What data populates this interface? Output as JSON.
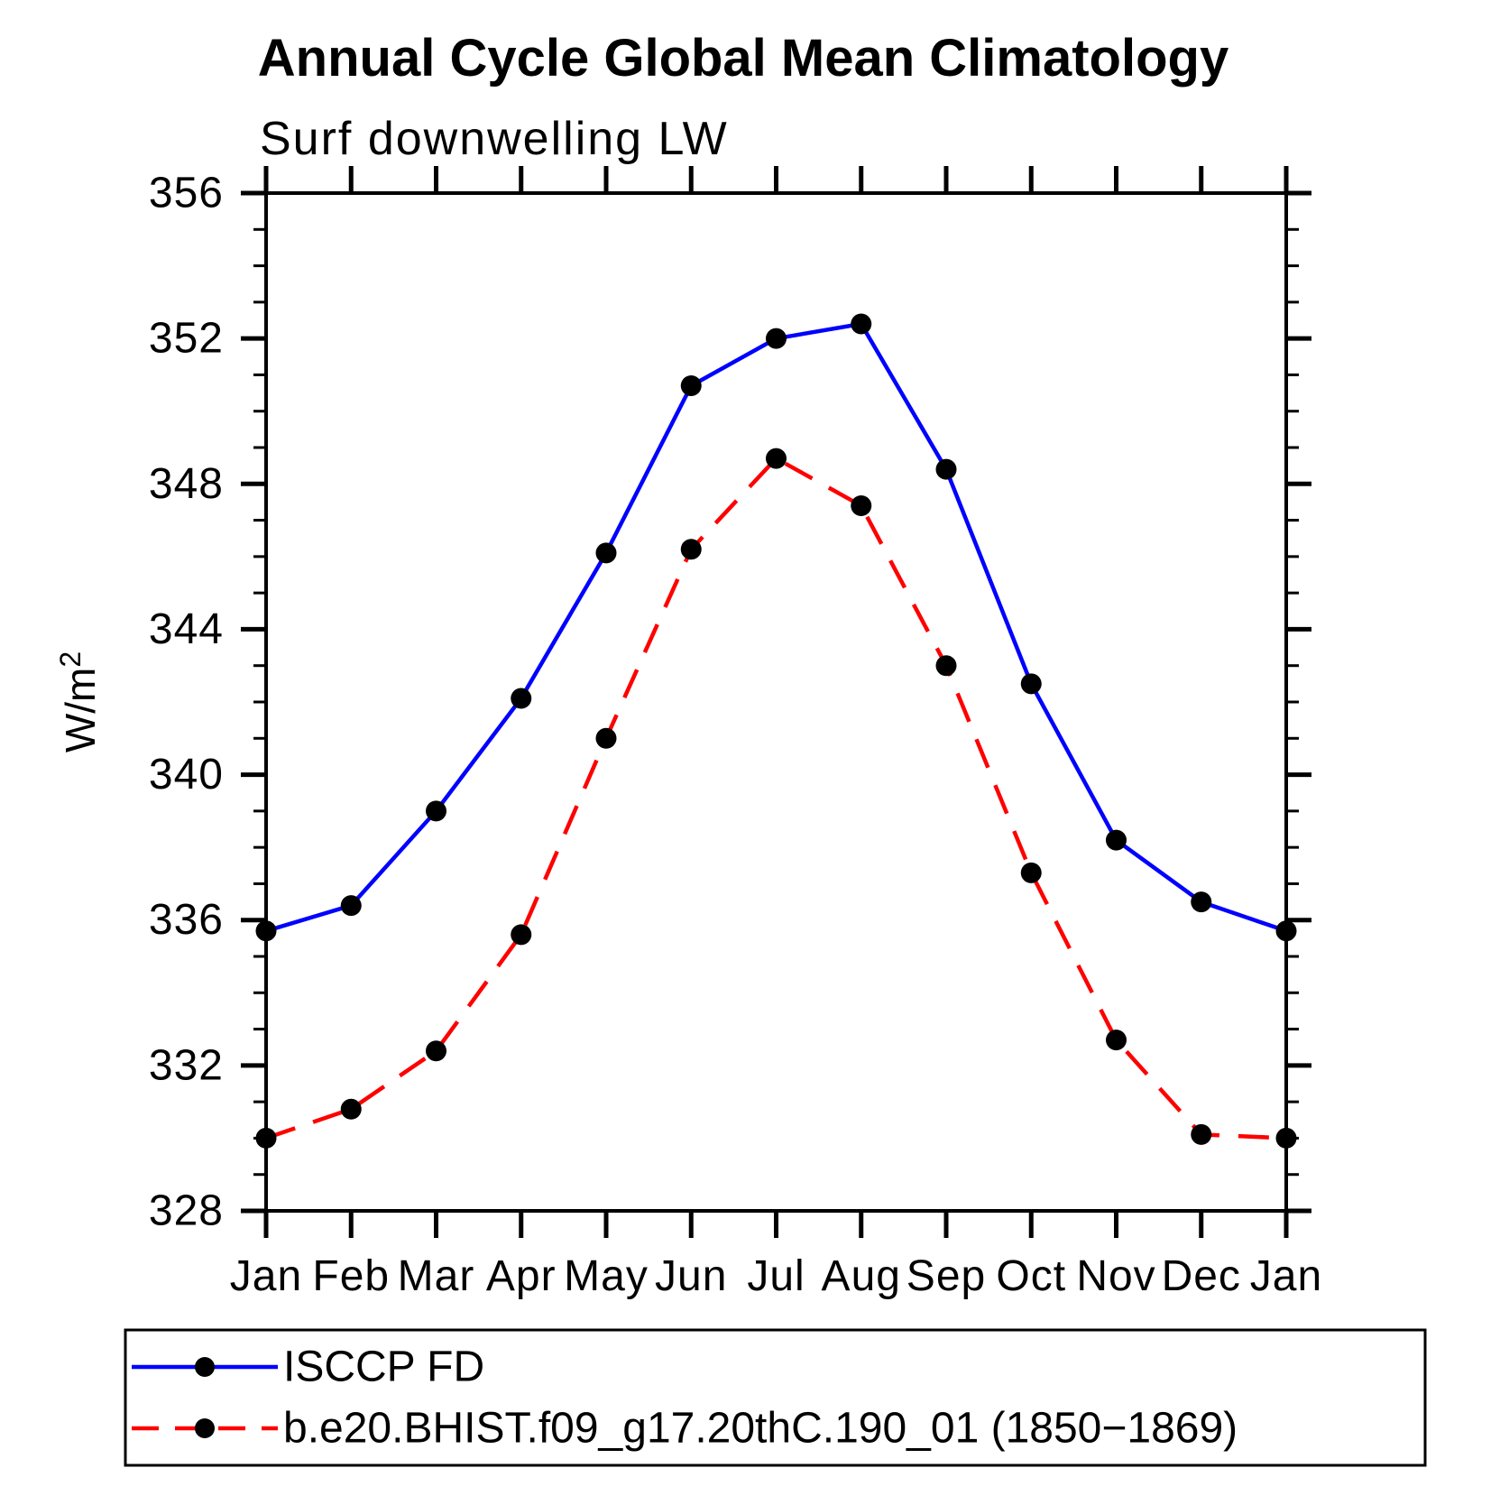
{
  "page": {
    "background_color": "#ffffff",
    "axis_color": "#000000",
    "text_color": "#000000"
  },
  "chart_data": {
    "type": "line",
    "title": "Annual Cycle Global Mean Climatology",
    "subtitle": "Surf downwelling LW",
    "xlabel": "",
    "ylabel": "W/m²",
    "ylabel_base": "W/m",
    "ylabel_exponent": "2",
    "ylim": [
      328,
      356
    ],
    "ytick_major": [
      328,
      332,
      336,
      340,
      344,
      348,
      352,
      356
    ],
    "ytick_minor_step": 1,
    "grid": false,
    "legend_position": "bottom-left-box",
    "categories": [
      "Jan",
      "Feb",
      "Mar",
      "Apr",
      "May",
      "Jun",
      "Jul",
      "Aug",
      "Sep",
      "Oct",
      "Nov",
      "Dec",
      "Jan"
    ],
    "series": [
      {
        "name": "ISCCP FD",
        "color": "#0000ff",
        "line_style": "solid",
        "marker": "circle",
        "marker_color": "#000000",
        "values": [
          335.7,
          336.4,
          339.0,
          342.1,
          346.1,
          350.7,
          352.0,
          352.4,
          348.4,
          342.5,
          338.2,
          336.5,
          335.7
        ]
      },
      {
        "name": "b.e20.BHIST.f09_g17.20thC.190_01 (1850−1869)",
        "color": "#ff0000",
        "line_style": "dashed",
        "marker": "circle",
        "marker_color": "#000000",
        "values": [
          330.0,
          330.8,
          332.4,
          335.6,
          341.0,
          346.2,
          348.7,
          347.4,
          343.0,
          337.3,
          332.7,
          330.1,
          330.0
        ]
      }
    ]
  }
}
